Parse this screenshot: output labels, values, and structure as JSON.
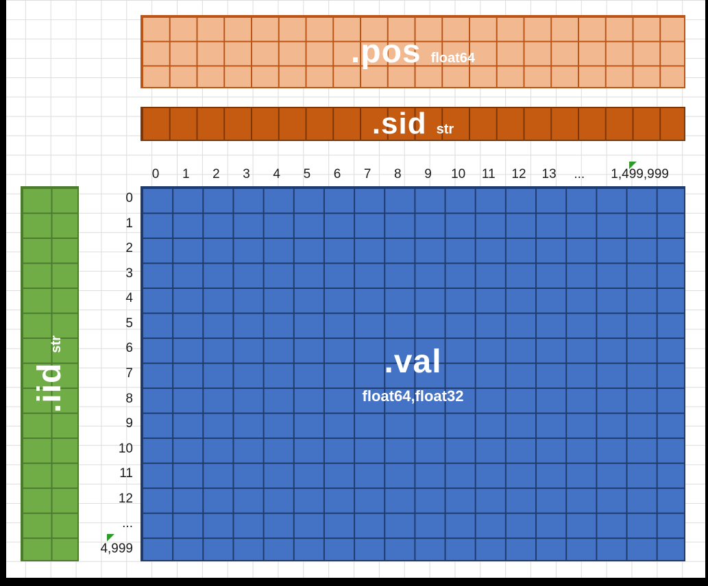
{
  "arrays": {
    "pos": {
      "name": ".pos",
      "dtype": "float64"
    },
    "sid": {
      "name": ".sid",
      "dtype": "str"
    },
    "iid": {
      "name": ".iid",
      "dtype": "str"
    },
    "val": {
      "name": ".val",
      "dtype": "float64,float32"
    }
  },
  "axes": {
    "columns": [
      "0",
      "1",
      "2",
      "3",
      "4",
      "5",
      "6",
      "7",
      "8",
      "9",
      "10",
      "11",
      "12",
      "13",
      "...",
      "1,499,999"
    ],
    "rows": [
      "0",
      "1",
      "2",
      "3",
      "4",
      "5",
      "6",
      "7",
      "8",
      "9",
      "10",
      "11",
      "12",
      "...",
      "4,999"
    ]
  },
  "colors": {
    "pos_fill": "#F2B991",
    "pos_line": "#BA5517",
    "sid_fill": "#C55A11",
    "sid_line": "#7D3606",
    "iid_fill": "#70AD47",
    "iid_line": "#4C7A2F",
    "val_fill": "#4472C4",
    "val_line": "#1F3B6E",
    "break_marker": "#2E9B29"
  }
}
